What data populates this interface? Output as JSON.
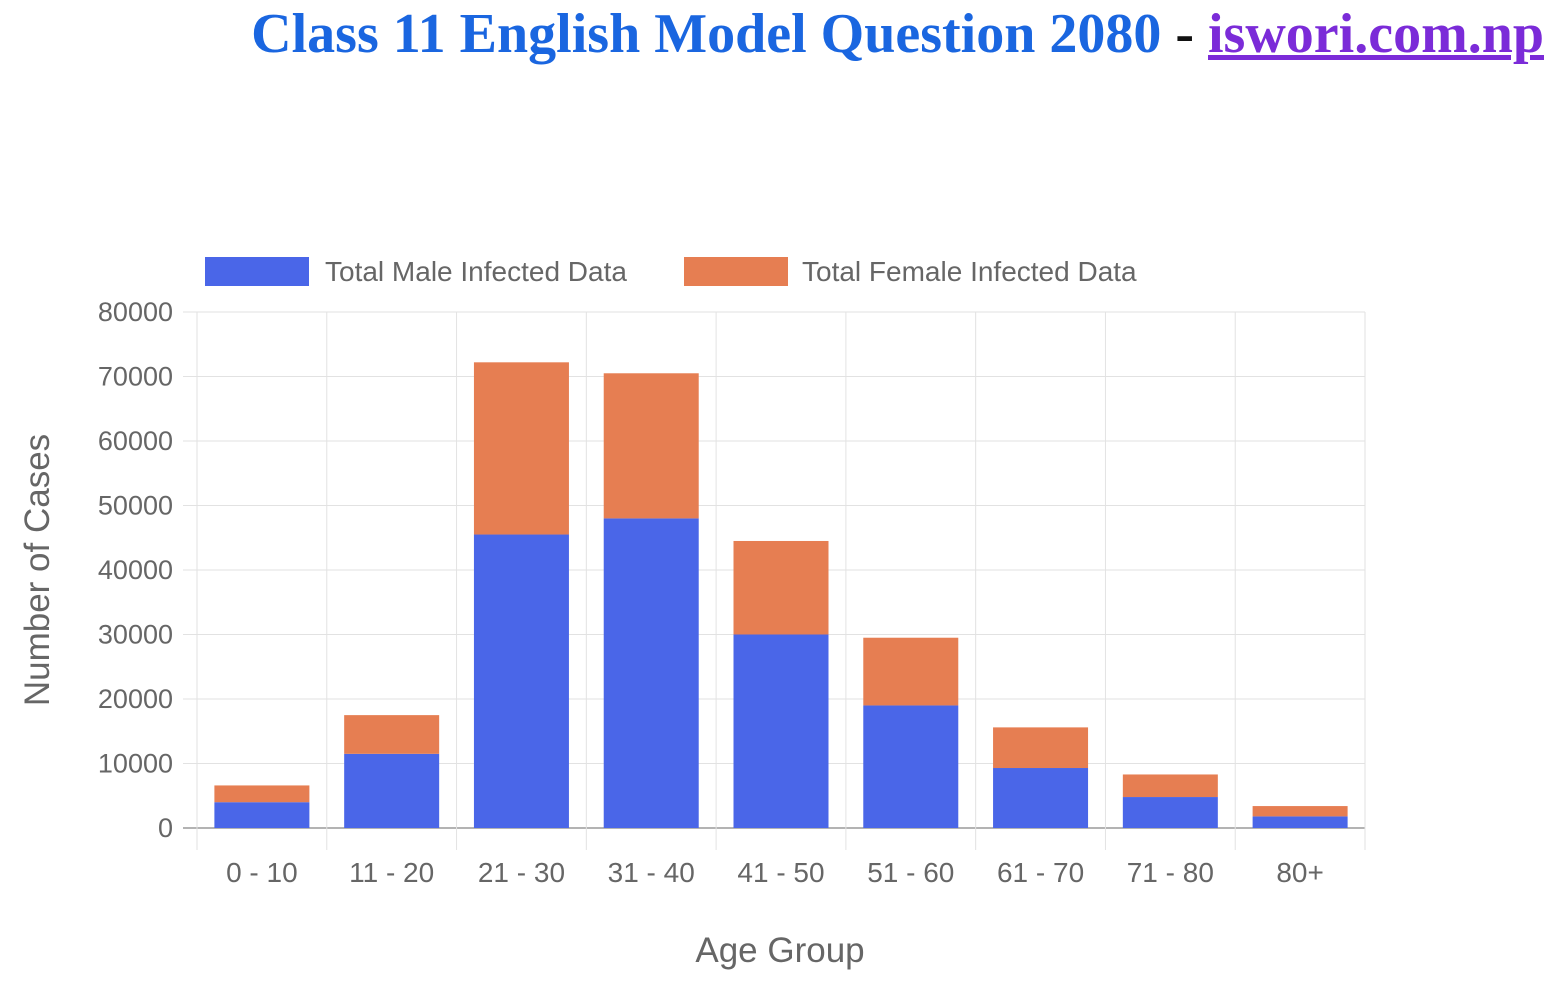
{
  "header": {
    "title": "Class 11 English Model Question 2080",
    "separator": "-",
    "site": "iswori.com.np"
  },
  "chart_data": {
    "type": "bar",
    "stacked": true,
    "title": "",
    "xlabel": "Age Group",
    "ylabel": "Number of Cases",
    "ylim": [
      0,
      80000
    ],
    "yticks": [
      0,
      10000,
      20000,
      30000,
      40000,
      50000,
      60000,
      70000,
      80000
    ],
    "categories": [
      "0 - 10",
      "11 - 20",
      "21 - 30",
      "31 - 40",
      "41 - 50",
      "51 - 60",
      "61 - 70",
      "71 - 80",
      "80+"
    ],
    "series": [
      {
        "name": "Total Male Infected Data",
        "color": "#4a66e8",
        "values": [
          4000,
          11500,
          45500,
          48000,
          30000,
          19000,
          9300,
          4800,
          1800
        ]
      },
      {
        "name": "Total Female Infected Data",
        "color": "#e67e52",
        "values": [
          2600,
          6000,
          26700,
          22500,
          14500,
          10500,
          6300,
          3500,
          1600
        ]
      }
    ],
    "legend_position": "top",
    "grid": true
  }
}
